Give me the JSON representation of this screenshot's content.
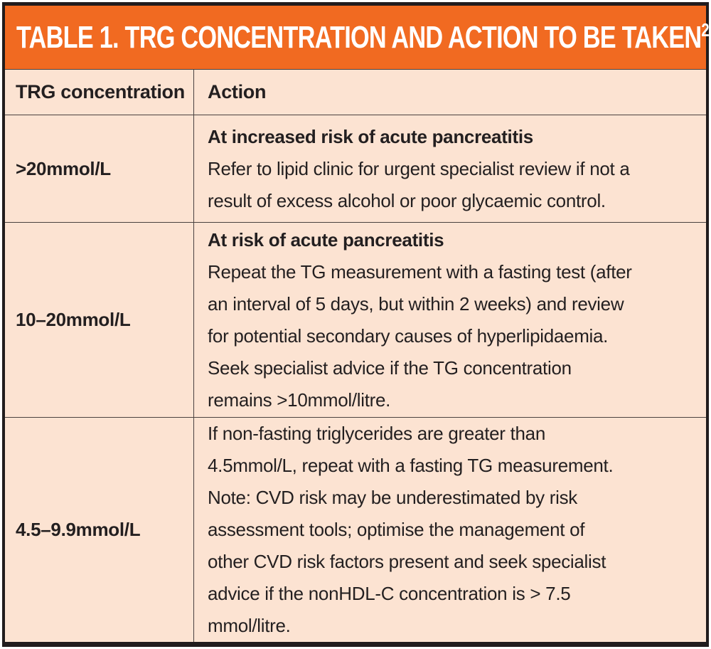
{
  "table": {
    "title": "TABLE 1. TRG CONCENTRATION AND ACTION TO BE TAKEN",
    "title_superscript": "2",
    "columns": {
      "concentration": "TRG concentration",
      "action": "Action"
    },
    "rows": [
      {
        "concentration": ">20mmol/L",
        "action_heading": "At increased risk of acute pancreatitis",
        "action_body": "Refer to lipid clinic for urgent specialist review if not a\nresult of excess alcohol or poor glycaemic control."
      },
      {
        "concentration": "10–20mmol/L",
        "action_heading": "At risk of acute pancreatitis",
        "action_body": "Repeat the TG measurement with a fasting test (after\nan interval of 5 days, but within 2 weeks) and review\nfor potential secondary causes of hyperlipidaemia.\nSeek specialist advice if the TG concentration\nremains >10mmol/litre."
      },
      {
        "concentration": "4.5–9.9mmol/L",
        "action_heading": "",
        "action_body": "If non-fasting triglycerides are greater than\n4.5mmol/L, repeat with a fasting TG measurement.\nNote: CVD risk may be underestimated by risk\nassessment tools; optimise the management of\nother CVD risk factors present and seek specialist\nadvice if the nonHDL-C concentration is > 7.5\nmmol/litre."
      }
    ]
  },
  "colors": {
    "accent_orange": "#F16A21",
    "cell_peach": "#FCE3D2",
    "frame_dark": "#211C1D",
    "grid_line": "#4A4240",
    "text_dark": "#231F20",
    "title_text": "#FFFFFF"
  }
}
